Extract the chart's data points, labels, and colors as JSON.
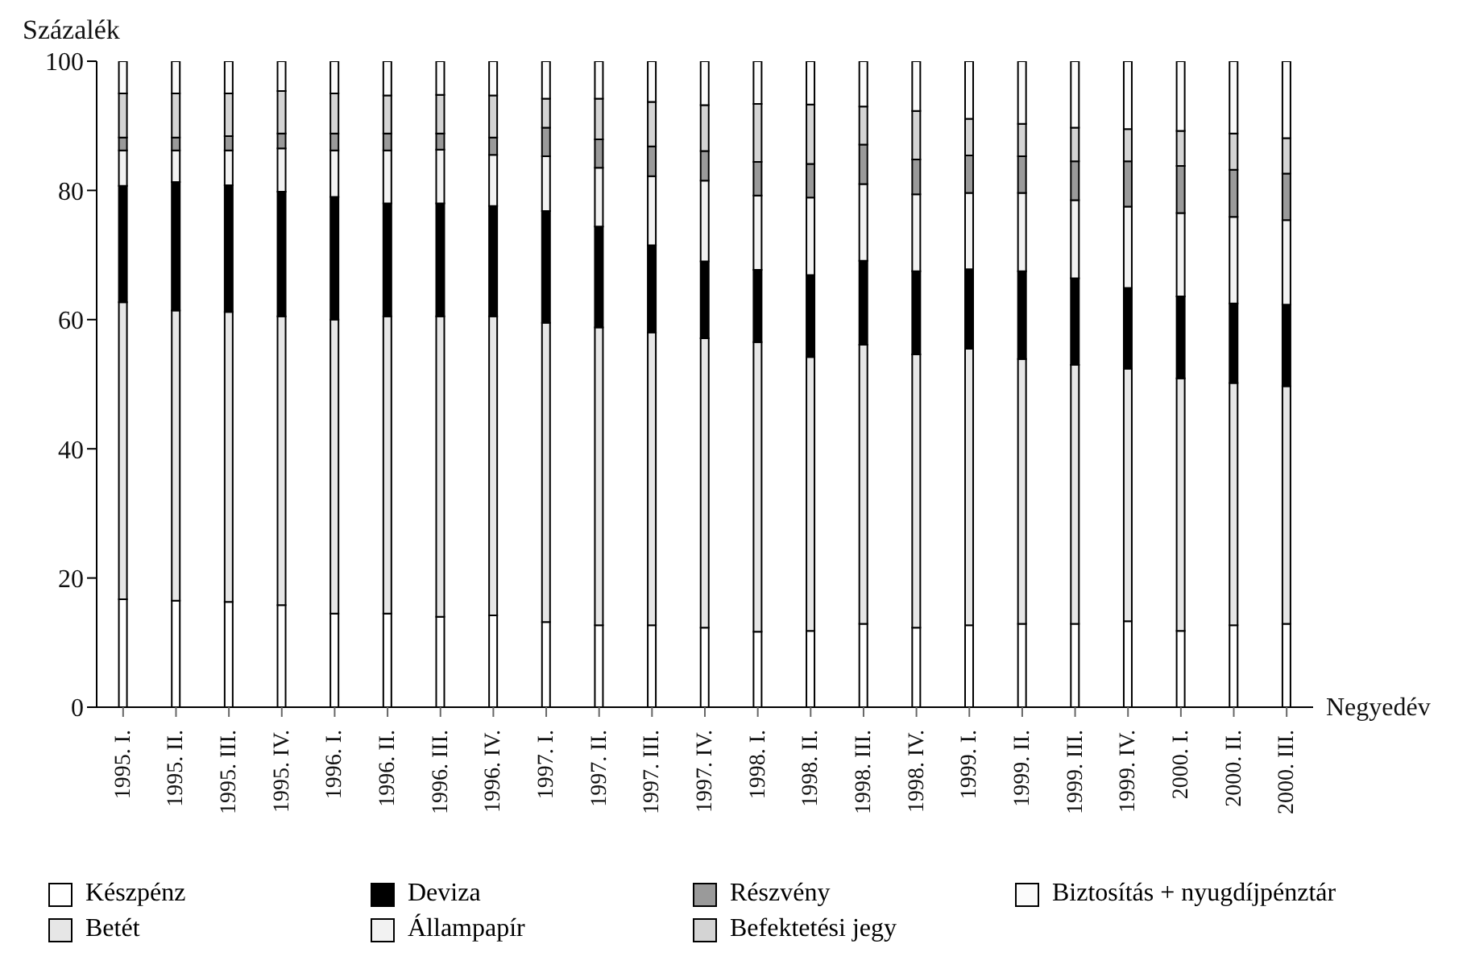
{
  "chart_data": {
    "type": "bar",
    "stacked": true,
    "xlabel": "Negyedév",
    "ylabel": "Százalék",
    "categories": [
      "1995. I.",
      "1995. II.",
      "1995. III.",
      "1995. IV.",
      "1996. I.",
      "1996. II.",
      "1996. III.",
      "1996. IV.",
      "1997. I.",
      "1997. II.",
      "1997. III.",
      "1997. IV.",
      "1998. I.",
      "1998. II.",
      "1998. III.",
      "1998. IV.",
      "1999. I.",
      "1999. II.",
      "1999. III.",
      "1999. IV.",
      "2000. I.",
      "2000. II.",
      "2000. III."
    ],
    "ylim": [
      0,
      100
    ],
    "yticks": [
      0,
      20,
      40,
      60,
      80,
      100
    ],
    "grid": false,
    "legend": "bottom",
    "series": [
      {
        "name": "Készpénz",
        "color": "#ffffff",
        "values": [
          16.7,
          16.5,
          16.3,
          15.8,
          14.5,
          14.5,
          14,
          14.2,
          13.2,
          12.7,
          12.7,
          12.3,
          11.7,
          11.8,
          12.9,
          12.3,
          12.7,
          12.9,
          12.9,
          13.3,
          11.8,
          12.7,
          12.9
        ]
      },
      {
        "name": "Betét",
        "color": "#e6e6e6",
        "values": [
          46,
          44.9,
          44.9,
          44.7,
          45.5,
          46,
          46.5,
          46.3,
          46.3,
          46.1,
          45.3,
          44.8,
          44.8,
          42.4,
          43.2,
          42.3,
          42.8,
          41,
          40.1,
          39.1,
          39.1,
          37.5,
          36.8
        ]
      },
      {
        "name": "Deviza",
        "color": "#000000",
        "values": [
          18,
          19.9,
          19.6,
          19.3,
          19,
          17.5,
          17.5,
          17.1,
          17.3,
          15.6,
          13.5,
          11.9,
          11.2,
          12.7,
          13,
          12.9,
          12.3,
          13.6,
          13.4,
          12.5,
          12.7,
          12.3,
          12.6
        ]
      },
      {
        "name": "Állampapír",
        "color": "#f2f2f2",
        "values": [
          5.5,
          4.9,
          5.4,
          6.7,
          7.2,
          8.2,
          8.3,
          7.9,
          8.5,
          9.1,
          10.7,
          12.5,
          11.5,
          12,
          11.9,
          11.9,
          11.8,
          12.1,
          12.1,
          12.6,
          12.9,
          13.4,
          13.1
        ]
      },
      {
        "name": "Részvény",
        "color": "#9a9a9a",
        "values": [
          2,
          2,
          2.2,
          2.3,
          2.6,
          2.6,
          2.5,
          2.7,
          4.4,
          4.4,
          4.6,
          4.6,
          5.2,
          5.2,
          6.1,
          5.4,
          5.8,
          5.7,
          6,
          7,
          7.3,
          7.3,
          7.2
        ]
      },
      {
        "name": "Befektetési jegy",
        "color": "#d4d4d4",
        "values": [
          6.8,
          6.8,
          6.6,
          6.6,
          6.2,
          5.9,
          6,
          6.5,
          4.5,
          6.3,
          6.9,
          7.1,
          9,
          9.2,
          5.9,
          7.5,
          5.7,
          5,
          5.2,
          5,
          5.4,
          5.6,
          5.5
        ]
      },
      {
        "name": "Biztosítás + nyugdíjpénztár",
        "color": "#fbfbfb",
        "values": [
          5,
          5,
          5,
          4.6,
          5,
          5.3,
          5.2,
          5.3,
          5.8,
          5.8,
          6.3,
          6.8,
          6.6,
          6.7,
          7,
          7.7,
          8.9,
          9.7,
          10.3,
          10.5,
          10.8,
          11.2,
          11.9
        ]
      }
    ]
  }
}
